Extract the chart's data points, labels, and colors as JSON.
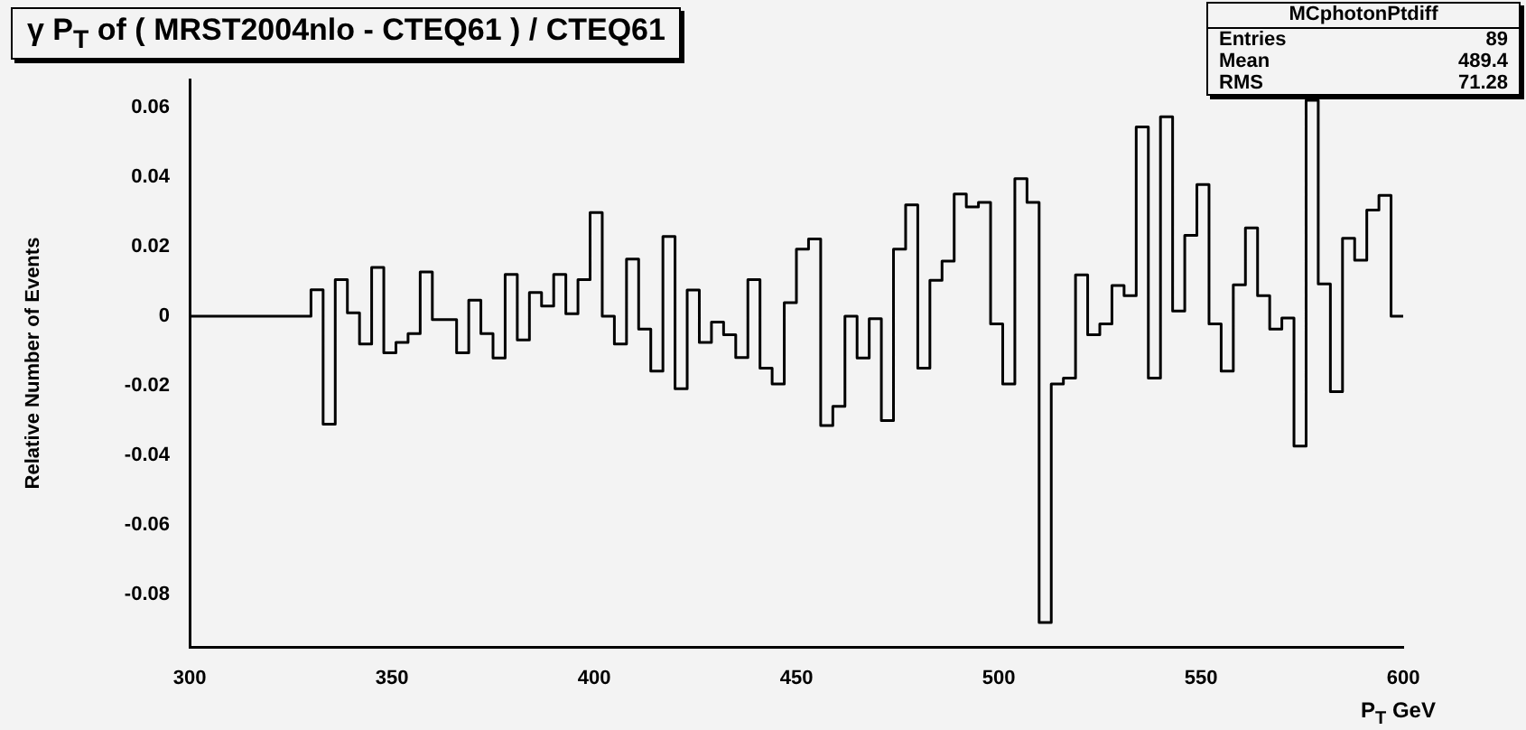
{
  "chart_data": {
    "type": "histogram",
    "title": "γ P$_{T}$ of ( MRST2004nlo - CTEQ61 ) / CTEQ61",
    "xlabel": "P$_{T}$ GeV",
    "ylabel": "Relative Number of Events",
    "color": "#000000",
    "bins": [
      300,
      303,
      306,
      309,
      312,
      315,
      318,
      321,
      324,
      327,
      330,
      333,
      336,
      339,
      342,
      345,
      348,
      351,
      354,
      357,
      360,
      363,
      366,
      369,
      372,
      375,
      378,
      381,
      384,
      387,
      390,
      393,
      396,
      399,
      402,
      405,
      408,
      411,
      414,
      417,
      420,
      423,
      426,
      429,
      432,
      435,
      438,
      441,
      444,
      447,
      450,
      453,
      456,
      459,
      462,
      465,
      468,
      471,
      474,
      477,
      480,
      483,
      486,
      489,
      492,
      495,
      498,
      501,
      504,
      507,
      510,
      513,
      516,
      519,
      522,
      525,
      528,
      531,
      534,
      537,
      540,
      543,
      546,
      549,
      552,
      555,
      558,
      561,
      564,
      567,
      570,
      573,
      576,
      579,
      582,
      585,
      588,
      591,
      594,
      597,
      600
    ],
    "values": [
      0,
      0,
      0,
      0,
      0,
      0,
      0,
      0,
      0,
      0,
      0.0076,
      -0.031,
      0.0105,
      0.001,
      -0.008,
      0.014,
      -0.0105,
      -0.0075,
      -0.005,
      0.0127,
      -0.001,
      -0.001,
      -0.0105,
      0.0046,
      -0.005,
      -0.012,
      0.012,
      -0.0068,
      0.0068,
      0.0029,
      0.012,
      0.0007,
      0.0105,
      0.0298,
      0,
      -0.008,
      0.0164,
      -0.0037,
      -0.0158,
      0.0229,
      -0.0208,
      0.0075,
      -0.0075,
      -0.0017,
      -0.0053,
      -0.0119,
      0.0105,
      -0.0149,
      -0.0195,
      0.0039,
      0.0193,
      0.0222,
      -0.0314,
      -0.0259,
      0,
      -0.012,
      -0.0007,
      -0.03,
      0.0193,
      0.032,
      -0.0149,
      0.0103,
      0.0158,
      0.0351,
      0.0314,
      0.0327,
      -0.0022,
      -0.0195,
      0.0395,
      0.0327,
      -0.088,
      -0.0195,
      -0.0178,
      0.0119,
      -0.0053,
      -0.0022,
      0.0088,
      0.0059,
      0.0544,
      -0.0178,
      0.0573,
      0.0015,
      0.0232,
      0.0378,
      -0.0022,
      -0.0158,
      0.009,
      0.0254,
      0.0059,
      -0.0037,
      -0.0005,
      -0.0373,
      0.062,
      0.0093,
      -0.0217,
      0.0224,
      0.0161,
      0.0305,
      0.0347,
      0
    ],
    "xlim": [
      300,
      600
    ],
    "xticks": [
      300,
      350,
      400,
      450,
      500,
      550,
      600
    ],
    "ylim": [
      -0.095,
      0.068
    ],
    "yticks": [
      -0.08,
      -0.06,
      -0.04,
      -0.02,
      0,
      0.02,
      0.04,
      0.06
    ],
    "grid": false,
    "legend": false,
    "annotations": [
      "MCphotonPtdiff",
      "Entries 89",
      "Mean 489.4",
      "RMS 71.28"
    ]
  }
}
